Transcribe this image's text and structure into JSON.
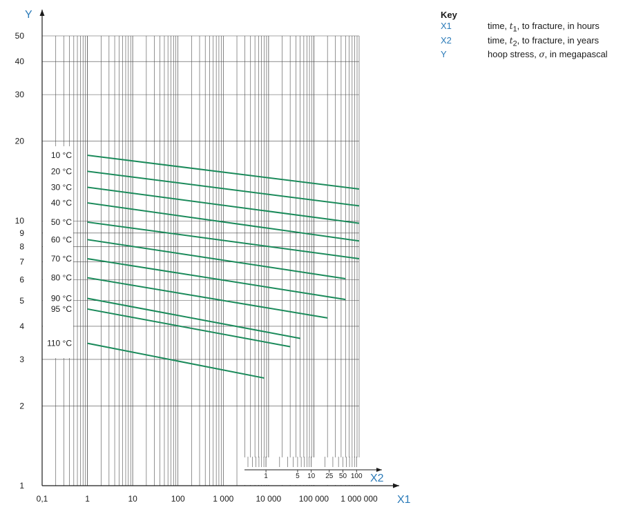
{
  "key": {
    "title": "Key",
    "items": [
      {
        "symbol": "X1",
        "pre": "time, ",
        "var": "t",
        "sub": "1",
        "post": ", to fracture, in hours"
      },
      {
        "symbol": "X2",
        "pre": "time, ",
        "var": "t",
        "sub": "2",
        "post": ", to fracture, in years"
      },
      {
        "symbol": "Y",
        "pre": "hoop stress, ",
        "var": "σ",
        "sub": "",
        "post": ", in megapascal"
      }
    ]
  },
  "colors": {
    "curve": "#1a8a5a",
    "axis_label": "#2a7ab8",
    "grid": "#4a4a4a",
    "axis": "#1a1a1a"
  },
  "chart_data": {
    "type": "line",
    "x_scale": "log",
    "y_scale": "log",
    "xlim": [
      0.1,
      1000000
    ],
    "ylim": [
      1,
      50
    ],
    "x_axis_label": "X1",
    "x2_axis_label": "X2",
    "y_axis_label": "Y",
    "x_ticks": [
      {
        "value": 0.1,
        "label": "0,1"
      },
      {
        "value": 1,
        "label": "1"
      },
      {
        "value": 10,
        "label": "10"
      },
      {
        "value": 100,
        "label": "100"
      },
      {
        "value": 1000,
        "label": "1 000"
      },
      {
        "value": 10000,
        "label": "10 000"
      },
      {
        "value": 100000,
        "label": "100 000"
      },
      {
        "value": 1000000,
        "label": "1 000 000"
      }
    ],
    "x2_ticks": [
      {
        "years": 1,
        "label": "1"
      },
      {
        "years": 5,
        "label": "5"
      },
      {
        "years": 10,
        "label": "10"
      },
      {
        "years": 25,
        "label": "25"
      },
      {
        "years": 50,
        "label": "50"
      },
      {
        "years": 100,
        "label": "100"
      }
    ],
    "y_ticks": [
      {
        "value": 1,
        "label": "1"
      },
      {
        "value": 2,
        "label": "2"
      },
      {
        "value": 3,
        "label": "3"
      },
      {
        "value": 4,
        "label": "4"
      },
      {
        "value": 5,
        "label": "5"
      },
      {
        "value": 6,
        "label": "6"
      },
      {
        "value": 7,
        "label": "7"
      },
      {
        "value": 8,
        "label": "8"
      },
      {
        "value": 9,
        "label": "9"
      },
      {
        "value": 10,
        "label": "10"
      },
      {
        "value": 20,
        "label": "20"
      },
      {
        "value": 30,
        "label": "30"
      },
      {
        "value": 40,
        "label": "40"
      },
      {
        "value": 50,
        "label": "50"
      }
    ],
    "grid": true,
    "series": [
      {
        "name": "10 °C",
        "x": [
          1,
          1000000
        ],
        "y": [
          17.7,
          13.2
        ]
      },
      {
        "name": "20 °C",
        "x": [
          1,
          1000000
        ],
        "y": [
          15.4,
          11.4
        ]
      },
      {
        "name": "30 °C",
        "x": [
          1,
          1000000
        ],
        "y": [
          13.4,
          9.8
        ]
      },
      {
        "name": "40 °C",
        "x": [
          1,
          1000000
        ],
        "y": [
          11.7,
          8.4
        ]
      },
      {
        "name": "50 °C",
        "x": [
          1,
          1000000
        ],
        "y": [
          9.9,
          7.2
        ]
      },
      {
        "name": "60 °C",
        "x": [
          1,
          500000
        ],
        "y": [
          8.5,
          6.05
        ]
      },
      {
        "name": "70 °C",
        "x": [
          1,
          500000
        ],
        "y": [
          7.2,
          5.05
        ]
      },
      {
        "name": "80 °C",
        "x": [
          1,
          200000
        ],
        "y": [
          6.1,
          4.3
        ]
      },
      {
        "name": "90 °C",
        "x": [
          1,
          50000
        ],
        "y": [
          5.1,
          3.6
        ]
      },
      {
        "name": "95 °C",
        "x": [
          1,
          30000
        ],
        "y": [
          4.65,
          3.35
        ]
      },
      {
        "name": "110 °C",
        "x": [
          1,
          8000
        ],
        "y": [
          3.45,
          2.55
        ]
      }
    ]
  }
}
